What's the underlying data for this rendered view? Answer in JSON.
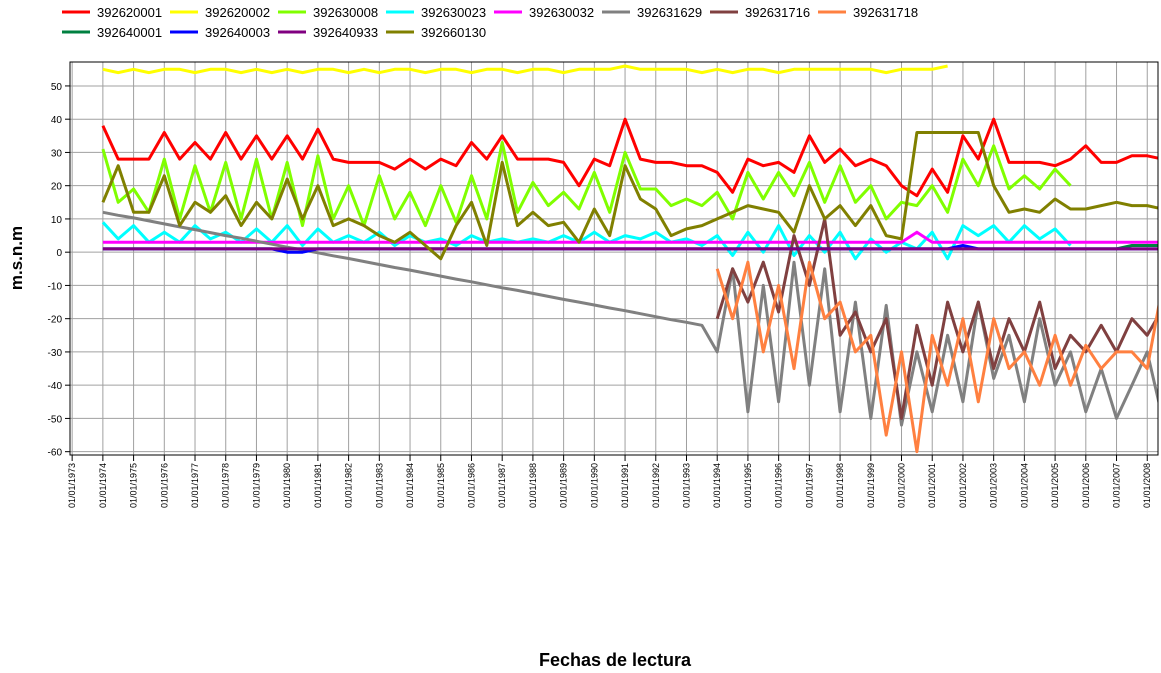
{
  "chart_data": {
    "type": "line",
    "x_label": "Fechas de lectura",
    "y_label": "m.s.n.m",
    "xlim": [
      1972.93,
      2008.35
    ],
    "ylim": [
      -61,
      57.2
    ],
    "xticks": [
      {
        "value": 1973,
        "label": "01/01/1973"
      },
      {
        "value": 1974,
        "label": "01/01/1974"
      },
      {
        "value": 1975,
        "label": "01/01/1975"
      },
      {
        "value": 1976,
        "label": "01/01/1976"
      },
      {
        "value": 1977,
        "label": "01/01/1977"
      },
      {
        "value": 1978,
        "label": "01/01/1978"
      },
      {
        "value": 1979,
        "label": "01/01/1979"
      },
      {
        "value": 1980,
        "label": "01/01/1980"
      },
      {
        "value": 1981,
        "label": "01/01/1981"
      },
      {
        "value": 1982,
        "label": "01/01/1982"
      },
      {
        "value": 1983,
        "label": "01/01/1983"
      },
      {
        "value": 1984,
        "label": "01/01/1984"
      },
      {
        "value": 1985,
        "label": "01/01/1985"
      },
      {
        "value": 1986,
        "label": "01/01/1986"
      },
      {
        "value": 1987,
        "label": "01/01/1987"
      },
      {
        "value": 1988,
        "label": "01/01/1988"
      },
      {
        "value": 1989,
        "label": "01/01/1989"
      },
      {
        "value": 1990,
        "label": "01/01/1990"
      },
      {
        "value": 1991,
        "label": "01/01/1991"
      },
      {
        "value": 1992,
        "label": "01/01/1992"
      },
      {
        "value": 1993,
        "label": "01/01/1993"
      },
      {
        "value": 1994,
        "label": "01/01/1994"
      },
      {
        "value": 1995,
        "label": "01/01/1995"
      },
      {
        "value": 1996,
        "label": "01/01/1996"
      },
      {
        "value": 1997,
        "label": "01/01/1997"
      },
      {
        "value": 1998,
        "label": "01/01/1998"
      },
      {
        "value": 1999,
        "label": "01/01/1999"
      },
      {
        "value": 2000,
        "label": "01/01/2000"
      },
      {
        "value": 2001,
        "label": "01/01/2001"
      },
      {
        "value": 2002,
        "label": "01/01/2002"
      },
      {
        "value": 2003,
        "label": "01/01/2003"
      },
      {
        "value": 2004,
        "label": "01/01/2004"
      },
      {
        "value": 2005,
        "label": "01/01/2005"
      },
      {
        "value": 2006,
        "label": "01/01/2006"
      },
      {
        "value": 2007,
        "label": "01/01/2007"
      },
      {
        "value": 2008,
        "label": "01/01/2008"
      }
    ],
    "yticks": [
      -60,
      -50,
      -40,
      -30,
      -20,
      -10,
      0,
      10,
      20,
      30,
      40,
      50
    ],
    "grid": true,
    "x": [
      1974,
      1974.5,
      1975,
      1975.5,
      1976,
      1976.5,
      1977,
      1977.5,
      1978,
      1978.5,
      1979,
      1979.5,
      1980,
      1980.5,
      1981,
      1981.5,
      1982,
      1982.5,
      1983,
      1983.5,
      1984,
      1984.5,
      1985,
      1985.5,
      1986,
      1986.5,
      1987,
      1987.5,
      1988,
      1988.5,
      1989,
      1989.5,
      1990,
      1990.5,
      1991,
      1991.5,
      1992,
      1992.5,
      1993,
      1993.5,
      1994,
      1994.5,
      1995,
      1995.5,
      1996,
      1996.5,
      1997,
      1997.5,
      1998,
      1998.5,
      1999,
      1999.5,
      2000,
      2000.5,
      2001,
      2001.5,
      2002,
      2002.5,
      2003,
      2003.5,
      2004,
      2004.5,
      2005,
      2005.5,
      2006,
      2006.5,
      2007,
      2007.5,
      2008,
      2008.5
    ],
    "series": [
      {
        "name": "392620001",
        "color": "#ff0000",
        "values": [
          38,
          28,
          28,
          28,
          36,
          28,
          33,
          28,
          36,
          28,
          35,
          28,
          35,
          28,
          37,
          28,
          27,
          27,
          27,
          25,
          28,
          25,
          28,
          26,
          33,
          28,
          35,
          28,
          28,
          28,
          27,
          20,
          28,
          26,
          40,
          28,
          27,
          27,
          26,
          26,
          24,
          18,
          28,
          26,
          27,
          24,
          35,
          27,
          31,
          26,
          28,
          26,
          20,
          17,
          25,
          18,
          35,
          28,
          40,
          27,
          27,
          27,
          26,
          28,
          32,
          27,
          27,
          29,
          29,
          28
        ]
      },
      {
        "name": "392620002",
        "color": "#ffff00",
        "values": [
          55,
          54,
          55,
          54,
          55,
          55,
          54,
          55,
          55,
          54,
          55,
          54,
          55,
          54,
          55,
          55,
          54,
          55,
          54,
          55,
          55,
          54,
          55,
          55,
          54,
          55,
          55,
          54,
          55,
          55,
          54,
          55,
          55,
          55,
          56,
          55,
          55,
          55,
          55,
          54,
          55,
          54,
          55,
          55,
          54,
          55,
          55,
          55,
          55,
          55,
          55,
          54,
          55,
          55,
          55,
          56,
          null,
          null,
          null,
          null,
          null,
          null,
          null,
          null,
          null,
          null,
          null,
          null,
          null,
          null
        ]
      },
      {
        "name": "392630008",
        "color": "#80ff00",
        "values": [
          31,
          15,
          19,
          12,
          28,
          10,
          26,
          12,
          27,
          10,
          28,
          10,
          27,
          8,
          29,
          10,
          20,
          8,
          23,
          10,
          18,
          8,
          20,
          9,
          23,
          10,
          33,
          12,
          21,
          14,
          18,
          13,
          24,
          12,
          30,
          19,
          19,
          14,
          16,
          14,
          18,
          10,
          24,
          16,
          24,
          17,
          27,
          15,
          26,
          15,
          20,
          10,
          15,
          14,
          20,
          12,
          28,
          20,
          32,
          19,
          23,
          19,
          25,
          20,
          null,
          null,
          null,
          null,
          null,
          null
        ]
      },
      {
        "name": "392630023",
        "color": "#00ffff",
        "values": [
          9,
          4,
          8,
          3,
          6,
          3,
          8,
          4,
          6,
          3,
          7,
          3,
          8,
          2,
          7,
          3,
          5,
          3,
          6,
          2,
          5,
          3,
          4,
          2,
          5,
          3,
          4,
          3,
          4,
          3,
          5,
          3,
          6,
          3,
          5,
          4,
          6,
          3,
          4,
          2,
          5,
          -1,
          6,
          0,
          8,
          -1,
          5,
          0,
          6,
          -2,
          4,
          0,
          3,
          1,
          6,
          -2,
          8,
          5,
          8,
          3,
          8,
          4,
          7,
          2,
          null,
          null,
          null,
          null,
          null,
          null
        ]
      },
      {
        "name": "392630032",
        "color": "#ff00ff",
        "values": [
          3,
          3,
          3,
          3,
          3,
          3,
          3,
          3,
          3,
          3,
          3,
          3,
          3,
          3,
          3,
          3,
          3,
          3,
          3,
          3,
          3,
          3,
          3,
          3,
          3,
          3,
          3,
          3,
          3,
          3,
          3,
          3,
          3,
          3,
          3,
          3,
          3,
          3,
          3,
          3,
          3,
          3,
          3,
          3,
          3,
          3,
          3,
          3,
          3,
          3,
          3,
          3,
          3,
          6,
          3,
          3,
          3,
          3,
          3,
          3,
          3,
          3,
          3,
          3,
          3,
          3,
          3,
          3,
          3,
          3
        ]
      },
      {
        "name": "392631629",
        "color": "#808080",
        "values": [
          12,
          11.1,
          10.3,
          9.4,
          8.5,
          7.6,
          6.8,
          5.9,
          5,
          4.2,
          3.3,
          2.4,
          1.5,
          0.7,
          -0.2,
          -1.1,
          -1.9,
          -2.8,
          -3.7,
          -4.6,
          -5.4,
          -6.3,
          -7.2,
          -8.1,
          -8.9,
          -9.8,
          -10.7,
          -11.5,
          -12.4,
          -13.3,
          -14.2,
          -15,
          -15.9,
          -16.8,
          -17.6,
          -18.5,
          -19.4,
          -20.3,
          -21.1,
          -22,
          -30,
          -5,
          -48,
          -10,
          -45,
          -3,
          -40,
          -5,
          -48,
          -15,
          -50,
          -16,
          -52,
          -30,
          -48,
          -25,
          -45,
          -15,
          -38,
          -25,
          -45,
          -20,
          -40,
          -30,
          -48,
          -35,
          -50,
          -40,
          -30,
          -50
        ]
      },
      {
        "name": "392631716",
        "color": "#804040",
        "values": [
          null,
          null,
          null,
          null,
          null,
          null,
          null,
          null,
          null,
          null,
          null,
          null,
          null,
          null,
          null,
          null,
          null,
          null,
          null,
          null,
          null,
          null,
          null,
          null,
          null,
          null,
          null,
          null,
          null,
          null,
          null,
          null,
          null,
          null,
          null,
          null,
          null,
          null,
          null,
          null,
          -20,
          -5,
          -15,
          -3,
          -18,
          5,
          -10,
          10,
          -25,
          -18,
          -30,
          -20,
          -50,
          -22,
          -40,
          -15,
          -30,
          -15,
          -35,
          -20,
          -30,
          -15,
          -35,
          -25,
          -30,
          -22,
          -30,
          -20,
          -25,
          -17
        ]
      },
      {
        "name": "392631718",
        "color": "#ff8040",
        "values": [
          null,
          null,
          null,
          null,
          null,
          null,
          null,
          null,
          null,
          null,
          null,
          null,
          null,
          null,
          null,
          null,
          null,
          null,
          null,
          null,
          null,
          null,
          null,
          null,
          null,
          null,
          null,
          null,
          null,
          null,
          null,
          null,
          null,
          null,
          null,
          null,
          null,
          null,
          null,
          null,
          -5,
          -20,
          -3,
          -30,
          -10,
          -35,
          -3,
          -20,
          -15,
          -30,
          -25,
          -55,
          -30,
          -60,
          -25,
          -40,
          -20,
          -45,
          -20,
          -35,
          -30,
          -40,
          -25,
          -40,
          -28,
          -35,
          -30,
          -30,
          -35,
          -10
        ]
      },
      {
        "name": "392640001",
        "color": "#008040",
        "values": [
          1,
          1,
          1,
          1,
          1,
          1,
          1,
          1,
          1,
          1,
          1,
          1,
          1,
          1,
          1,
          1,
          1,
          1,
          1,
          1,
          1,
          1,
          1,
          1,
          1,
          1,
          1,
          1,
          1,
          1,
          1,
          1,
          1,
          1,
          1,
          1,
          1,
          1,
          1,
          1,
          1,
          1,
          1,
          1,
          1,
          1,
          1,
          1,
          1,
          1,
          1,
          1,
          1,
          1,
          1,
          1,
          1,
          1,
          1,
          1,
          1,
          1,
          1,
          1,
          1,
          1,
          1,
          2,
          2,
          2
        ]
      },
      {
        "name": "392640003",
        "color": "#0000ff",
        "values": [
          1,
          1,
          1,
          1,
          1,
          1,
          1,
          1,
          1,
          1,
          1,
          1,
          0,
          0,
          1,
          1,
          1,
          1,
          1,
          1,
          1,
          1,
          1,
          1,
          1,
          1,
          1,
          1,
          1,
          1,
          1,
          1,
          1,
          1,
          1,
          1,
          1,
          1,
          1,
          1,
          1,
          1,
          1,
          1,
          1,
          1,
          1,
          1,
          1,
          1,
          1,
          1,
          1,
          1,
          1,
          1,
          2,
          1,
          1,
          1,
          1,
          1,
          1,
          1,
          1,
          1,
          1,
          1,
          1,
          1
        ]
      },
      {
        "name": "392640933",
        "color": "#800080",
        "values": [
          1,
          1,
          1,
          1,
          1,
          1,
          1,
          1,
          1,
          1,
          1,
          1,
          1,
          1,
          1,
          1,
          1,
          1,
          1,
          1,
          1,
          1,
          1,
          1,
          1,
          1,
          1,
          1,
          1,
          1,
          1,
          1,
          1,
          1,
          1,
          1,
          1,
          1,
          1,
          1,
          1,
          1,
          1,
          1,
          1,
          1,
          1,
          1,
          1,
          1,
          1,
          1,
          1,
          1,
          1,
          1,
          1,
          1,
          1,
          1,
          1,
          1,
          1,
          1,
          1,
          1,
          1,
          1,
          1,
          1
        ]
      },
      {
        "name": "392660130",
        "color": "#808000",
        "values": [
          15,
          26,
          12,
          12,
          23,
          8,
          15,
          12,
          17,
          8,
          15,
          10,
          22,
          10,
          20,
          8,
          10,
          8,
          5,
          3,
          6,
          2,
          -2,
          8,
          15,
          2,
          27,
          8,
          12,
          8,
          9,
          3,
          13,
          5,
          26,
          16,
          13,
          5,
          7,
          8,
          10,
          12,
          14,
          13,
          12,
          6,
          20,
          10,
          14,
          8,
          14,
          5,
          4,
          36,
          36,
          36,
          36,
          36,
          20,
          12,
          13,
          12,
          16,
          13,
          13,
          14,
          15,
          14,
          14,
          13
        ]
      }
    ]
  }
}
